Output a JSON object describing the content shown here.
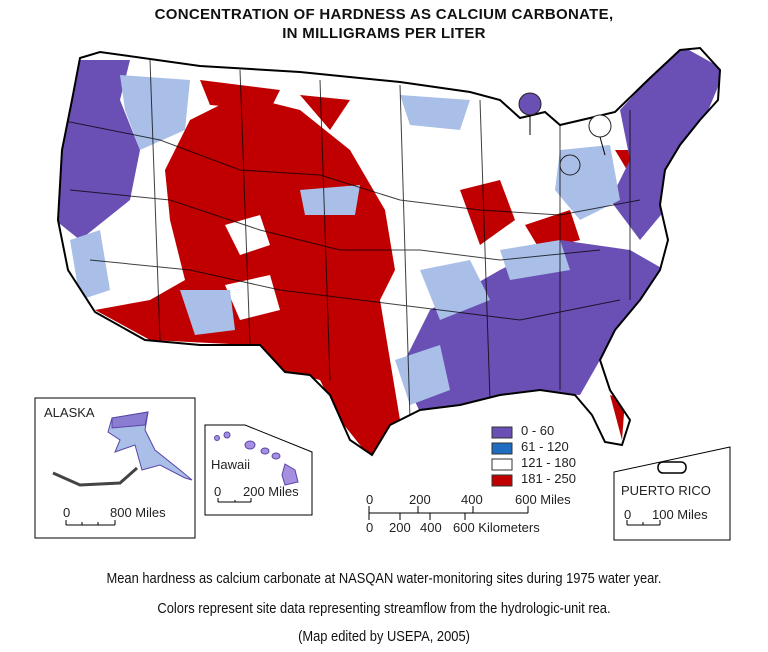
{
  "title_line1": "CONCENTRATION OF HARDNESS AS CALCIUM CARBONATE,",
  "title_line2": "IN MILLIGRAMS PER LITER",
  "legend": [
    {
      "label": "0 - 60",
      "color": "#6a50b4"
    },
    {
      "label": "61 - 120",
      "color": "#1f6cc0"
    },
    {
      "label": "121 - 180",
      "color": "#ffffff"
    },
    {
      "label": "181 - 250",
      "color": "#c00000"
    }
  ],
  "map_fill_light_blue": "#a9bfe8",
  "insets": {
    "alaska": {
      "label": "ALASKA",
      "scale_zero": "0",
      "scale_label": "800 Miles"
    },
    "hawaii": {
      "label": "Hawaii",
      "scale_zero": "0",
      "scale_label": "200 Miles"
    },
    "puerto_rico": {
      "label": "PUERTO RICO",
      "scale_zero": "0",
      "scale_label": "100 Miles"
    }
  },
  "scale_bar": {
    "miles_ticks": [
      "0",
      "200",
      "400",
      "600 Miles"
    ],
    "km_ticks": [
      "0",
      "200",
      "400",
      "600 Kilometers"
    ]
  },
  "caption": {
    "line1": "Mean hardness as calcium carbonate at NASQAN water-monitoring sites during 1975 water year.",
    "line2": "Colors represent site data representing streamflow from the hydrologic-unit rea.",
    "line3": "(Map edited by USEPA, 2005)"
  }
}
